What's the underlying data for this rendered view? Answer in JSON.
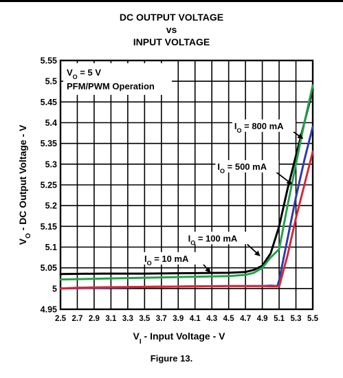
{
  "chart_data": {
    "type": "line",
    "title_lines": [
      "DC OUTPUT VOLTAGE",
      "vs",
      "INPUT VOLTAGE"
    ],
    "xlabel": {
      "main": "V",
      "sub": "I",
      "rest": " - Input Voltage - V"
    },
    "ylabel": {
      "main": "V",
      "sub": "O",
      "rest": " - DC Output Voltage - V"
    },
    "xlim": [
      2.5,
      5.5
    ],
    "ylim": [
      4.95,
      5.55
    ],
    "xticks": [
      "2.5",
      "2.7",
      "2.9",
      "3.1",
      "3.3",
      "3.5",
      "3.7",
      "3.9",
      "4.1",
      "4.3",
      "4.5",
      "4.7",
      "4.9",
      "5.1",
      "5.3",
      "5.5"
    ],
    "yticks": [
      "4.95",
      "5",
      "5.05",
      "5.1",
      "5.15",
      "5.2",
      "5.25",
      "5.3",
      "5.35",
      "5.4",
      "5.45",
      "5.5",
      "5.55"
    ],
    "grid": true,
    "conditions": {
      "line1": {
        "main": "V",
        "sub": "O",
        "rest": " = 5 V"
      },
      "line2": "PFM/PWM Operation"
    },
    "series": [
      {
        "name": {
          "main": "I",
          "sub": "O",
          "rest": " = 10 mA"
        },
        "color": "#000000",
        "x": [
          2.5,
          3.0,
          3.5,
          4.0,
          4.5,
          4.7,
          4.8,
          4.9,
          5.0,
          5.1,
          5.2,
          5.3,
          5.4,
          5.5
        ],
        "y": [
          5.035,
          5.036,
          5.036,
          5.037,
          5.038,
          5.04,
          5.045,
          5.055,
          5.085,
          5.15,
          5.24,
          5.32,
          5.4,
          5.48
        ]
      },
      {
        "name": {
          "main": "I",
          "sub": "O",
          "rest": " = 100 mA"
        },
        "color": "#22a24a",
        "x": [
          2.5,
          3.0,
          3.5,
          4.0,
          4.5,
          4.7,
          4.8,
          4.9,
          5.0,
          5.1,
          5.2,
          5.3,
          5.4,
          5.5
        ],
        "y": [
          5.022,
          5.024,
          5.026,
          5.028,
          5.03,
          5.033,
          5.038,
          5.05,
          5.075,
          5.095,
          5.2,
          5.3,
          5.4,
          5.49
        ]
      },
      {
        "name": {
          "main": "I",
          "sub": "O",
          "rest": " = 500 mA"
        },
        "color": "#2b3da8",
        "x": [
          2.5,
          3.0,
          3.5,
          4.0,
          4.5,
          4.9,
          5.0,
          5.08,
          5.1,
          5.2,
          5.3,
          5.4,
          5.5
        ],
        "y": [
          5.0,
          5.002,
          5.004,
          5.005,
          5.006,
          5.006,
          5.007,
          5.006,
          5.02,
          5.12,
          5.22,
          5.31,
          5.39
        ]
      },
      {
        "name": {
          "main": "I",
          "sub": "O",
          "rest": " = 800 mA"
        },
        "color": "#d62838",
        "x": [
          2.5,
          2.7,
          3.0,
          3.5,
          4.0,
          4.5,
          4.9,
          5.0,
          5.1,
          5.2,
          5.3,
          5.4,
          5.5
        ],
        "y": [
          5.0,
          5.002,
          5.003,
          5.004,
          5.005,
          5.006,
          5.006,
          5.005,
          5.005,
          5.08,
          5.17,
          5.25,
          5.33
        ]
      }
    ],
    "annotations": [
      {
        "series": 0,
        "arrow_from": [
          4.2,
          5.058
        ],
        "arrow_to": [
          4.28,
          5.039
        ]
      },
      {
        "series": 1,
        "arrow_from": [
          4.72,
          5.107
        ],
        "arrow_to": [
          4.87,
          5.079
        ]
      },
      {
        "series": 2,
        "arrow_from": [
          5.07,
          5.28
        ],
        "arrow_to": [
          5.25,
          5.252
        ]
      },
      {
        "series": 3,
        "arrow_from": [
          5.27,
          5.378
        ],
        "arrow_to": [
          5.38,
          5.362
        ]
      }
    ]
  },
  "figure_caption": "Figure 13."
}
